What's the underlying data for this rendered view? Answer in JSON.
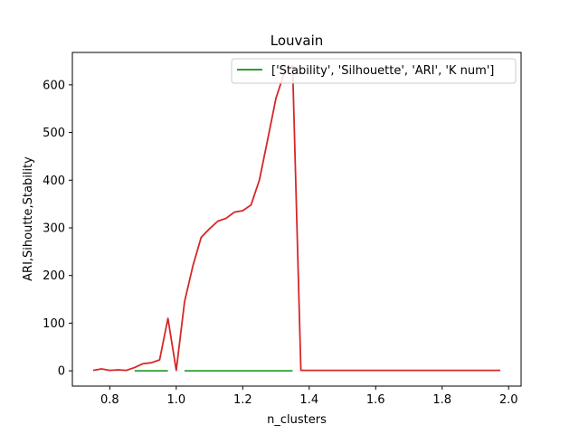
{
  "chart_data": {
    "type": "line",
    "title": "Louvain",
    "xlabel": "n_clusters",
    "ylabel": "ARI,Sihoutte,Stability",
    "xlim": [
      0.6875,
      2.0375
    ],
    "ylim": [
      -32,
      668
    ],
    "xticks": [
      0.8,
      1.0,
      1.2,
      1.4,
      1.6,
      1.8,
      2.0
    ],
    "xtick_labels": [
      "0.8",
      "1.0",
      "1.2",
      "1.4",
      "1.6",
      "1.8",
      "2.0"
    ],
    "yticks": [
      0,
      100,
      200,
      300,
      400,
      500,
      600
    ],
    "ytick_labels": [
      "0",
      "100",
      "200",
      "300",
      "400",
      "500",
      "600"
    ],
    "grid": false,
    "legend": {
      "placement": "upper-right",
      "entries": [
        {
          "label": "['Stability', 'Silhouette', 'ARI', 'K num']",
          "color": "#2ca02c"
        }
      ]
    },
    "series": [
      {
        "color": "#2ca02c",
        "segments": [
          {
            "x": [
              0.875,
              0.975
            ],
            "y": [
              0,
              0
            ]
          },
          {
            "x": [
              1.025,
              1.35
            ],
            "y": [
              0,
              0
            ]
          }
        ]
      },
      {
        "color": "#d62728",
        "segments": [
          {
            "x": [
              0.75,
              0.775,
              0.8,
              0.825,
              0.85,
              0.875,
              0.9,
              0.925,
              0.95,
              0.975,
              1.0,
              1.025,
              1.05,
              1.075,
              1.1,
              1.125,
              1.15,
              1.175,
              1.2,
              1.225,
              1.25,
              1.275,
              1.3,
              1.325,
              1.35,
              1.375,
              1.4,
              1.425,
              1.45,
              1.475,
              1.5,
              1.525,
              1.55,
              1.575,
              1.6,
              1.625,
              1.65,
              1.675,
              1.7,
              1.725,
              1.75,
              1.775,
              1.8,
              1.825,
              1.85,
              1.875,
              1.9,
              1.925,
              1.95,
              1.975
            ],
            "y": [
              1,
              4,
              1,
              2,
              1,
              7,
              15,
              17,
              23,
              110,
              1,
              145,
              220,
              280,
              298,
              314,
              320,
              333,
              336,
              348,
              400,
              485,
              572,
              625,
              640,
              1,
              1,
              1,
              1,
              1,
              1,
              1,
              1,
              1,
              1,
              1,
              1,
              1,
              1,
              1,
              1,
              1,
              1,
              1,
              1,
              1,
              1,
              1,
              1,
              1
            ]
          }
        ]
      }
    ]
  }
}
